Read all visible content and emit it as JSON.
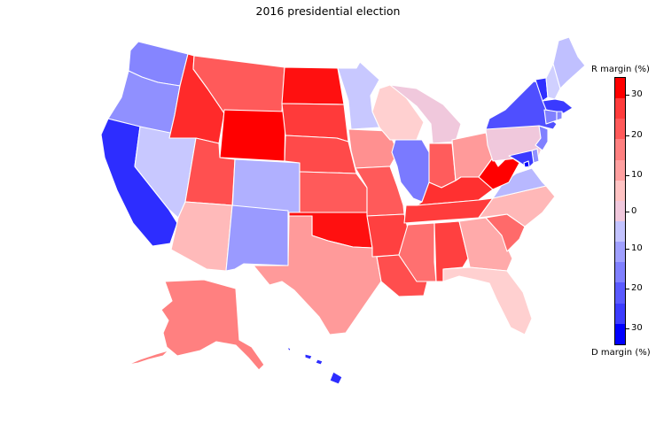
{
  "title": "2016 presidential election",
  "colorbar": {
    "top_label": "R margin (%)",
    "bottom_label": "D margin (%)",
    "ticks": [
      {
        "label": "30",
        "frac": 0.063
      },
      {
        "label": "20",
        "frac": 0.215
      },
      {
        "label": "10",
        "frac": 0.366
      },
      {
        "label": "0",
        "frac": 0.5
      },
      {
        "label": "10",
        "frac": 0.641
      },
      {
        "label": "20",
        "frac": 0.792
      },
      {
        "label": "30",
        "frac": 0.94
      }
    ],
    "segments": [
      "#ff0000",
      "#ff3c3c",
      "#ff5a5a",
      "#ff8080",
      "#ffa0a0",
      "#ffc3c3",
      "#f0c8dc",
      "#c3c3ff",
      "#a0a0ff",
      "#8080ff",
      "#5a5aff",
      "#3c3cff",
      "#0000ff"
    ]
  },
  "colors": {
    "WA": "#8585ff",
    "OR": "#9090ff",
    "CA": "#2d2dff",
    "NV": "#c8c8ff",
    "ID": "#ff2a2a",
    "MT": "#ff5a5a",
    "WY": "#ff0000",
    "UT": "#ff5050",
    "CO": "#b0b0ff",
    "AZ": "#ffbaba",
    "NM": "#9a9aff",
    "ND": "#ff1010",
    "SD": "#ff3a3a",
    "NE": "#ff4a4a",
    "KS": "#ff5a5a",
    "OK": "#ff1010",
    "TX": "#ff9a9a",
    "MN": "#c8c8ff",
    "IA": "#ff9090",
    "MO": "#ff5a5a",
    "AR": "#ff4040",
    "LA": "#ff4e4e",
    "WI": "#ffd0d0",
    "IL": "#7a7aff",
    "MI": "#f0c8dc",
    "IN": "#ff5c5c",
    "OH": "#ff9a9a",
    "KY": "#ff3030",
    "TN": "#ff3c3c",
    "MS": "#ff7070",
    "AL": "#ff4040",
    "GA": "#ffaaaa",
    "FL": "#ffd0d0",
    "SC": "#ff6a6a",
    "NC": "#ffb8b8",
    "VA": "#b8b8ff",
    "WV": "#ff0000",
    "PA": "#f0c8dc",
    "NY": "#4f4fff",
    "VT": "#3030ff",
    "NH": "#d0d0ff",
    "ME": "#c0c0ff",
    "MA": "#3a3aff",
    "CT": "#8080ff",
    "RI": "#8585ff",
    "NJ": "#8080ff",
    "DE": "#9090ff",
    "MD": "#3a3aff",
    "DC": "#0000ff",
    "AK": "#ff8080",
    "HI": "#2d2dff"
  }
}
